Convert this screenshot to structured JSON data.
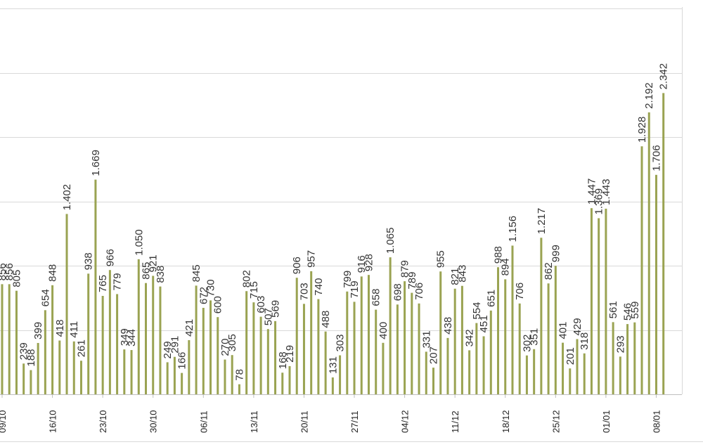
{
  "chart_data": {
    "type": "bar",
    "title": "",
    "xlabel": "",
    "ylabel": "",
    "ylim": [
      0,
      3000
    ],
    "gridlines": [
      500,
      1000,
      1500,
      2000,
      2500,
      3000
    ],
    "grid": true,
    "bar_color": "#9aa352",
    "x_ticks": [
      "09/10",
      "16/10",
      "23/10",
      "30/10",
      "06/11",
      "13/11",
      "20/11",
      "27/11",
      "04/12",
      "11/12",
      "18/12",
      "25/12",
      "01/01",
      "08/01"
    ],
    "values": [
      856,
      856,
      805,
      239,
      188,
      399,
      654,
      848,
      418,
      1402,
      411,
      261,
      938,
      1669,
      765,
      966,
      779,
      349,
      344,
      1050,
      865,
      921,
      838,
      249,
      291,
      166,
      421,
      845,
      672,
      730,
      600,
      270,
      305,
      78,
      802,
      715,
      603,
      507,
      569,
      168,
      219,
      906,
      703,
      957,
      740,
      488,
      131,
      303,
      799,
      719,
      916,
      928,
      658,
      400,
      1065,
      698,
      879,
      789,
      706,
      331,
      207,
      955,
      438,
      821,
      843,
      342,
      554,
      451,
      651,
      988,
      894,
      1156,
      706,
      302,
      351,
      1217,
      862,
      999,
      401,
      201,
      429,
      318,
      1447,
      1369,
      1443,
      561,
      293,
      546,
      559,
      1928,
      2192,
      1706,
      2342
    ],
    "data_labels": [
      "856",
      "856",
      "805",
      "239",
      "188",
      "399",
      "654",
      "848",
      "418",
      "1.402",
      "411",
      "261",
      "938",
      "1.669",
      "765",
      "966",
      "779",
      "349",
      "344",
      "1.050",
      "865",
      "921",
      "838",
      "249",
      "291",
      "166",
      "421",
      "845",
      "672",
      "730",
      "600",
      "270",
      "305",
      "78",
      "802",
      "715",
      "603",
      "507",
      "569",
      "168",
      "219",
      "906",
      "703",
      "957",
      "740",
      "488",
      "131",
      "303",
      "799",
      "719",
      "916",
      "928",
      "658",
      "400",
      "1.065",
      "698",
      "879",
      "789",
      "706",
      "331",
      "207",
      "955",
      "438",
      "821",
      "843",
      "342",
      "554",
      "451",
      "651",
      "988",
      "894",
      "1.156",
      "706",
      "302",
      "351",
      "1.217",
      "862",
      "999",
      "401",
      "201",
      "429",
      "318",
      "1.447",
      "1.369",
      "1.443",
      "561",
      "293",
      "546",
      "559",
      "1.928",
      "2.192",
      "1.706",
      "2.342"
    ]
  }
}
